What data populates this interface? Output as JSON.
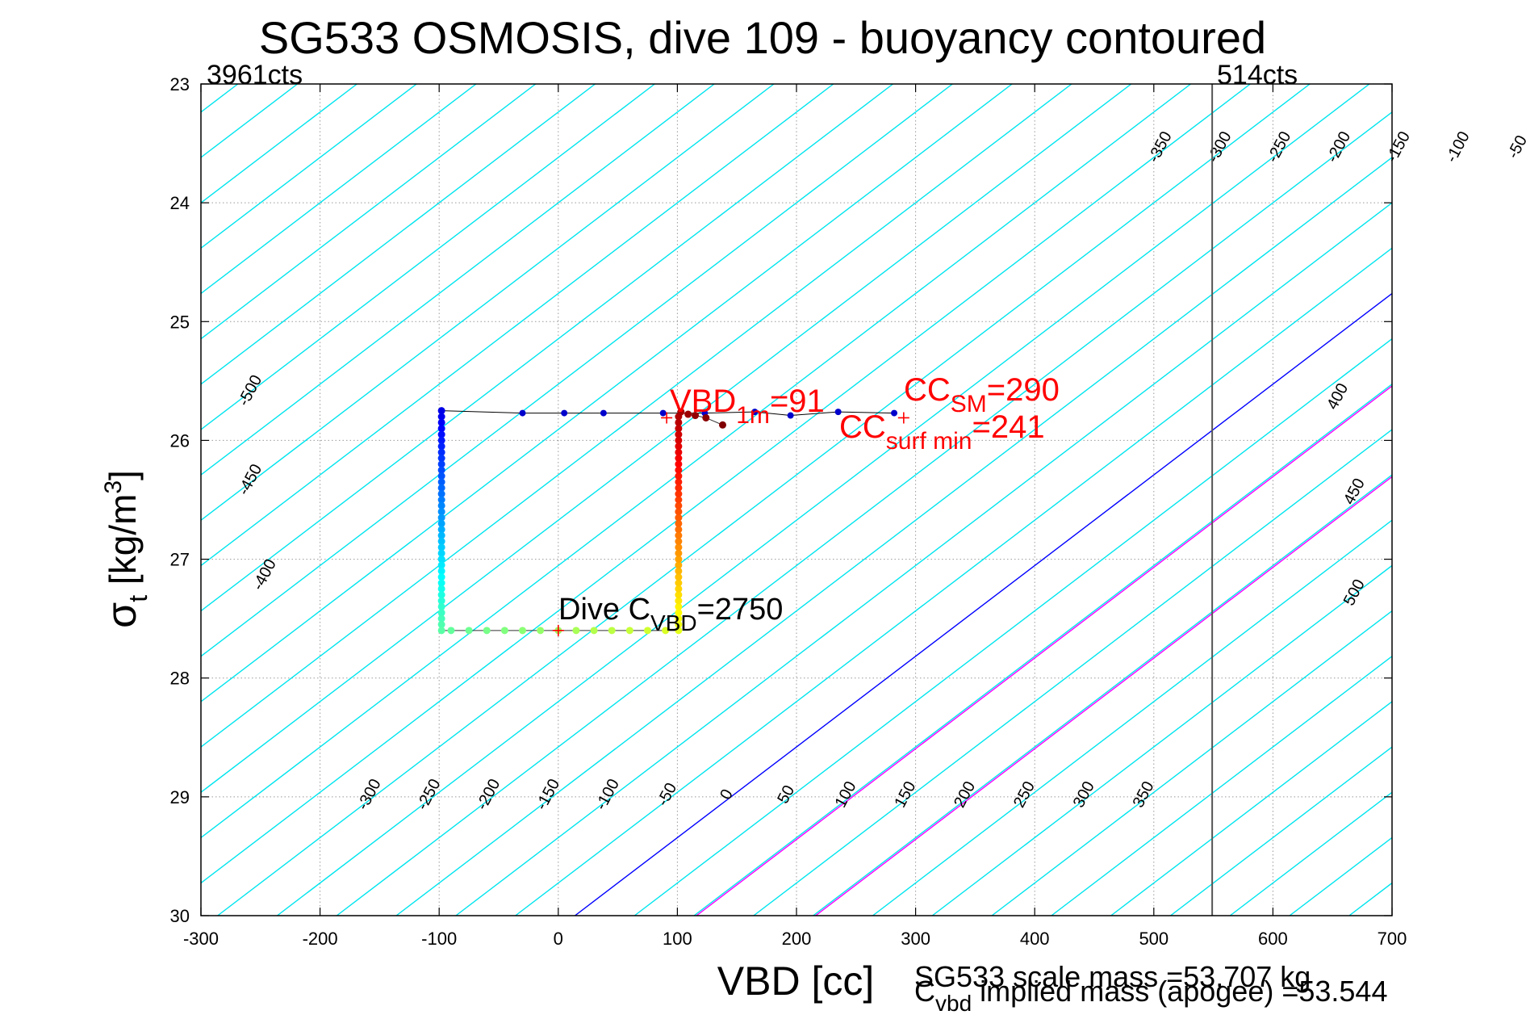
{
  "chart_data": {
    "type": "scatter",
    "title": "SG533 OSMOSIS, dive 109 - buoyancy contoured",
    "xlabel": "VBD [cc]",
    "ylabel_main": "σ",
    "ylabel_sub": "t",
    "ylabel_rest": " [kg/m",
    "ylabel_sup": "3",
    "ylabel_close": "]",
    "xlim": [
      -300,
      700
    ],
    "ylim": [
      23,
      30
    ],
    "y_reversed": true,
    "grid": true,
    "xticks": [
      -300,
      -200,
      -100,
      0,
      100,
      200,
      300,
      400,
      500,
      600,
      700
    ],
    "yticks": [
      23,
      24,
      25,
      26,
      27,
      28,
      29,
      30
    ],
    "colors": {
      "contour": "#00e5ee",
      "zero_contour": "#0000ff",
      "magenta_lines": "#ff00ff",
      "annotation_red": "#ff0000",
      "descent_points": "#0000cc",
      "ascent_points": "#8b0000"
    },
    "counts_left": "3961cts",
    "counts_right": "514cts",
    "vbd_limit_line_x": 549,
    "contour_levels_top": [
      -350,
      -300,
      -250,
      -200,
      -150,
      -100,
      -50,
      0,
      50,
      100,
      150,
      200,
      250,
      300,
      350
    ],
    "contour_levels_right": [
      400,
      450,
      500
    ],
    "contour_levels_left": [
      -500,
      -450,
      -400
    ],
    "contour_levels_bottom": [
      -300,
      -250,
      -200,
      -150,
      -100,
      -50,
      0,
      50,
      100,
      150,
      200,
      250,
      300,
      350
    ],
    "magenta_vbd_at_bottom": [
      116,
      216
    ],
    "annotations": {
      "vbd1m_main": "VBD",
      "vbd1m_sub": "1m",
      "vbd1m_value": "=91",
      "ccsm_main": "CC",
      "ccsm_sub": "SM",
      "ccsm_value": "=290",
      "ccsurf_main": "CC",
      "ccsurf_sub": "surf min",
      "ccsurf_value": "=241",
      "dive_main": "Dive C",
      "dive_sub": "VBD",
      "dive_value": "=2750"
    },
    "marker_points": [
      {
        "x": 91,
        "y": 25.81
      },
      {
        "x": 290,
        "y": 25.81
      },
      {
        "x": 0,
        "y": 27.6
      }
    ],
    "series": [
      {
        "points": [
          [
            -98,
            25.75
          ],
          [
            -30,
            25.77
          ],
          [
            5,
            25.77
          ],
          [
            38,
            25.77
          ],
          [
            88,
            25.77
          ],
          [
            123,
            25.77
          ],
          [
            165,
            25.76
          ],
          [
            195,
            25.79
          ],
          [
            235,
            25.76
          ],
          [
            282,
            25.77
          ]
        ]
      },
      {
        "points": [
          [
            -98,
            25.75
          ],
          [
            -98,
            25.8
          ],
          [
            -98,
            25.85
          ],
          [
            -98,
            25.9
          ],
          [
            -98,
            25.95
          ],
          [
            -98,
            26.0
          ],
          [
            -98,
            26.05
          ],
          [
            -98,
            26.1
          ],
          [
            -98,
            26.15
          ],
          [
            -98,
            26.2
          ],
          [
            -98,
            26.25
          ],
          [
            -98,
            26.3
          ],
          [
            -98,
            26.35
          ],
          [
            -98,
            26.4
          ],
          [
            -98,
            26.45
          ],
          [
            -98,
            26.5
          ],
          [
            -98,
            26.55
          ],
          [
            -98,
            26.6
          ],
          [
            -98,
            26.65
          ],
          [
            -98,
            26.7
          ],
          [
            -98,
            26.75
          ],
          [
            -98,
            26.8
          ],
          [
            -98,
            26.85
          ],
          [
            -98,
            26.9
          ],
          [
            -98,
            26.95
          ],
          [
            -98,
            27.0
          ],
          [
            -98,
            27.05
          ],
          [
            -98,
            27.1
          ],
          [
            -98,
            27.15
          ],
          [
            -98,
            27.2
          ],
          [
            -98,
            27.25
          ],
          [
            -98,
            27.3
          ],
          [
            -98,
            27.35
          ],
          [
            -98,
            27.4
          ],
          [
            -98,
            27.45
          ],
          [
            -98,
            27.5
          ],
          [
            -98,
            27.55
          ],
          [
            -98,
            27.6
          ],
          [
            -90,
            27.6
          ],
          [
            -75,
            27.6
          ],
          [
            -60,
            27.6
          ],
          [
            -45,
            27.6
          ],
          [
            -30,
            27.6
          ],
          [
            -15,
            27.6
          ],
          [
            0,
            27.6
          ],
          [
            15,
            27.6
          ],
          [
            30,
            27.6
          ],
          [
            45,
            27.6
          ],
          [
            60,
            27.6
          ],
          [
            75,
            27.6
          ],
          [
            90,
            27.6
          ],
          [
            101,
            27.6
          ],
          [
            101,
            27.55
          ],
          [
            101,
            27.5
          ],
          [
            101,
            27.45
          ],
          [
            101,
            27.4
          ],
          [
            101,
            27.35
          ],
          [
            101,
            27.3
          ],
          [
            101,
            27.25
          ],
          [
            101,
            27.2
          ],
          [
            101,
            27.15
          ],
          [
            101,
            27.1
          ],
          [
            101,
            27.05
          ],
          [
            101,
            27.0
          ],
          [
            101,
            26.95
          ],
          [
            101,
            26.9
          ],
          [
            101,
            26.85
          ],
          [
            101,
            26.8
          ],
          [
            101,
            26.75
          ],
          [
            101,
            26.7
          ],
          [
            101,
            26.65
          ],
          [
            101,
            26.6
          ],
          [
            101,
            26.55
          ],
          [
            101,
            26.5
          ],
          [
            101,
            26.45
          ],
          [
            101,
            26.4
          ],
          [
            101,
            26.35
          ],
          [
            101,
            26.3
          ],
          [
            101,
            26.25
          ],
          [
            101,
            26.2
          ],
          [
            101,
            26.15
          ],
          [
            101,
            26.1
          ],
          [
            101,
            26.05
          ],
          [
            101,
            26.0
          ],
          [
            101,
            25.95
          ],
          [
            101,
            25.9
          ],
          [
            101,
            25.85
          ],
          [
            101,
            25.8
          ],
          [
            103,
            25.76
          ],
          [
            109,
            25.78
          ],
          [
            115,
            25.79
          ],
          [
            124,
            25.81
          ],
          [
            138,
            25.87
          ]
        ]
      }
    ],
    "footer_scale": "SG533 scale mass =53.707 kg",
    "footer_cvbd_main": "C",
    "footer_cvbd_sub": "vbd",
    "footer_cvbd_rest": " implied mass (apogee) =53.544"
  }
}
